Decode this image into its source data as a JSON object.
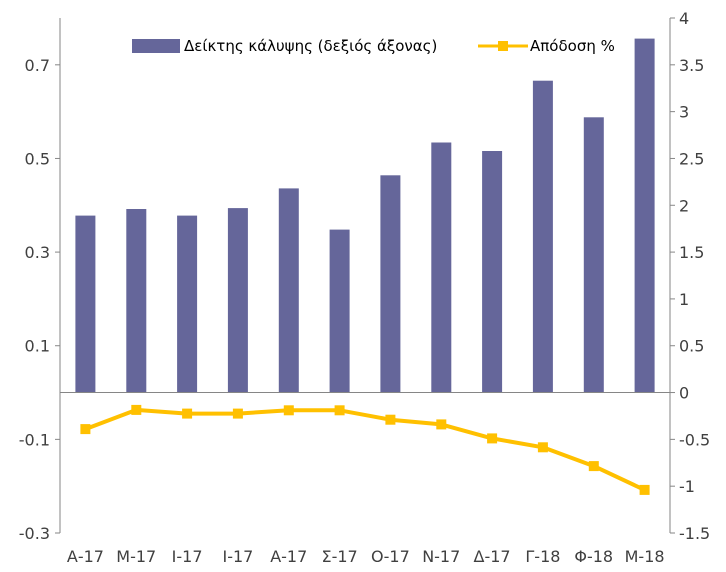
{
  "chart_data": {
    "type": "bar",
    "categories": [
      "Α-17",
      "Μ-17",
      "Ι-17",
      "Ι-17",
      "Α-17",
      "Σ-17",
      "Ο-17",
      "Ν-17",
      "Δ-17",
      "Γ-18",
      "Φ-18",
      "Μ-18"
    ],
    "series": [
      {
        "name": "Δείκτης κάλυψης  (δεξιός άξονας)",
        "type": "bar",
        "axis": "right",
        "color": "#65669a",
        "values": [
          1.89,
          1.96,
          1.89,
          1.97,
          2.18,
          1.74,
          2.32,
          2.67,
          2.58,
          3.33,
          2.94,
          3.78
        ]
      },
      {
        "name": "Απόδοση %",
        "type": "line",
        "axis": "left",
        "color": "#ffc000",
        "values": [
          -0.078,
          -0.037,
          -0.045,
          -0.045,
          -0.038,
          -0.038,
          -0.058,
          -0.068,
          -0.098,
          -0.117,
          -0.157,
          -0.208
        ]
      }
    ],
    "left_axis": {
      "ylim": [
        -0.3,
        0.8
      ],
      "ticks": [
        "-0.3",
        "-0.1",
        "0.1",
        "0.3",
        "0.5",
        "0.7"
      ]
    },
    "right_axis": {
      "ylim": [
        -1.5,
        4
      ],
      "ticks": [
        "-1.5",
        "-1",
        "-0.5",
        "0",
        "0.5",
        "1",
        "1.5",
        "2",
        "2.5",
        "3",
        "3.5",
        "4"
      ]
    },
    "legend_position": "top",
    "grid": false
  }
}
